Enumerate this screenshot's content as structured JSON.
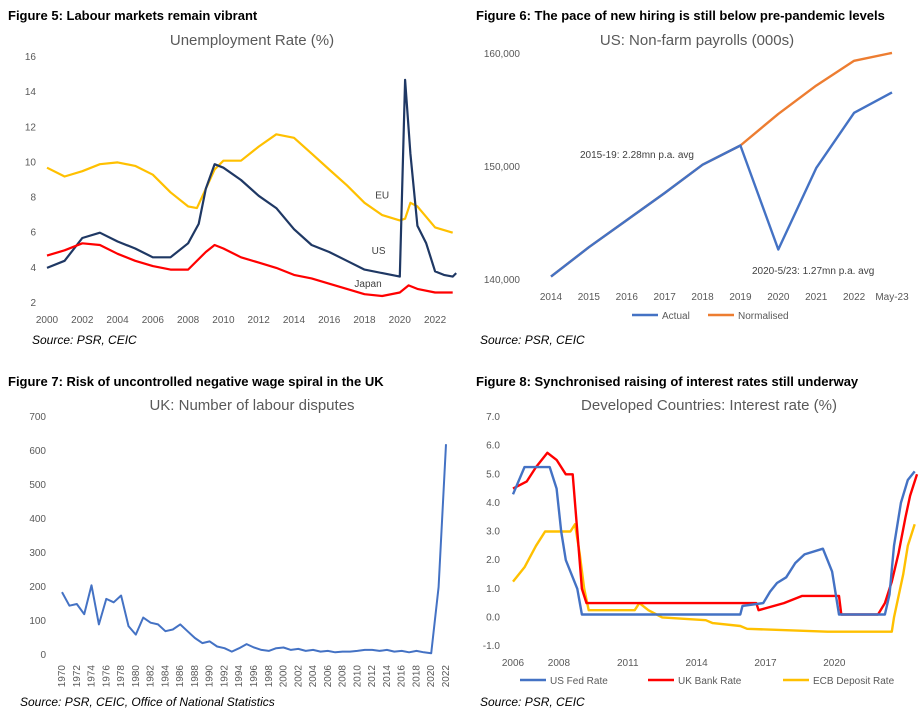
{
  "figures": [
    {
      "figure_title": "Figure 5: Labour markets remain vibrant",
      "source": "Source: PSR,  CEIC"
    },
    {
      "figure_title": "Figure 6: The pace of new hiring is still below pre-pandemic levels",
      "source": "Source: PSR, CEIC"
    },
    {
      "figure_title": "Figure 7: Risk of uncontrolled negative wage spiral in the UK",
      "source": "Source: PSR, CEIC, Office of National Statistics"
    },
    {
      "figure_title": "Figure 8: Synchronised raising of interest rates still underway",
      "source": "Source: PSR, CEIC"
    }
  ],
  "chart_data": [
    {
      "type": "line",
      "title": "Unemployment Rate (%)",
      "xlabel": "",
      "ylabel": "",
      "xlim": [
        2000,
        2023.3
      ],
      "ylim": [
        2,
        16
      ],
      "x_ticks": [
        "2000",
        "2002",
        "2004",
        "2006",
        "2008",
        "2010",
        "2012",
        "2014",
        "2016",
        "2018",
        "2020",
        "2022"
      ],
      "y_ticks": [
        "2",
        "4",
        "6",
        "8",
        "10",
        "12",
        "14",
        "16"
      ],
      "grid": false,
      "legend": "inline labels",
      "series": [
        {
          "name": "EU",
          "color": "#FFC000",
          "points": [
            [
              2000,
              9.7
            ],
            [
              2001,
              9.2
            ],
            [
              2002,
              9.5
            ],
            [
              2003,
              9.9
            ],
            [
              2004,
              10.0
            ],
            [
              2005,
              9.8
            ],
            [
              2006,
              9.3
            ],
            [
              2007,
              8.3
            ],
            [
              2008,
              7.5
            ],
            [
              2008.5,
              7.4
            ],
            [
              2009,
              8.5
            ],
            [
              2009.5,
              9.6
            ],
            [
              2010,
              10.1
            ],
            [
              2011,
              10.1
            ],
            [
              2012,
              10.9
            ],
            [
              2013,
              11.6
            ],
            [
              2014,
              11.4
            ],
            [
              2015,
              10.5
            ],
            [
              2016,
              9.6
            ],
            [
              2017,
              8.7
            ],
            [
              2018,
              7.7
            ],
            [
              2019,
              7.0
            ],
            [
              2020,
              6.7
            ],
            [
              2020.3,
              6.8
            ],
            [
              2020.6,
              7.7
            ],
            [
              2021,
              7.5
            ],
            [
              2022,
              6.3
            ],
            [
              2023,
              6.0
            ]
          ]
        },
        {
          "name": "US",
          "color": "#1F3864",
          "points": [
            [
              2000,
              4.0
            ],
            [
              2001,
              4.4
            ],
            [
              2002,
              5.7
            ],
            [
              2003,
              6.0
            ],
            [
              2004,
              5.5
            ],
            [
              2005,
              5.1
            ],
            [
              2006,
              4.6
            ],
            [
              2007,
              4.6
            ],
            [
              2008,
              5.4
            ],
            [
              2008.6,
              6.5
            ],
            [
              2009,
              8.5
            ],
            [
              2009.5,
              9.9
            ],
            [
              2010,
              9.7
            ],
            [
              2011,
              9.0
            ],
            [
              2012,
              8.1
            ],
            [
              2013,
              7.4
            ],
            [
              2014,
              6.2
            ],
            [
              2015,
              5.3
            ],
            [
              2016,
              4.9
            ],
            [
              2017,
              4.4
            ],
            [
              2018,
              3.9
            ],
            [
              2019,
              3.7
            ],
            [
              2020,
              3.5
            ],
            [
              2020.3,
              14.7
            ],
            [
              2020.6,
              10.5
            ],
            [
              2021,
              6.4
            ],
            [
              2021.5,
              5.4
            ],
            [
              2022,
              3.8
            ],
            [
              2022.5,
              3.6
            ],
            [
              2023,
              3.5
            ],
            [
              2023.2,
              3.7
            ]
          ]
        },
        {
          "name": "Japan",
          "color": "#FF0000",
          "points": [
            [
              2000,
              4.7
            ],
            [
              2001,
              5.0
            ],
            [
              2002,
              5.4
            ],
            [
              2003,
              5.3
            ],
            [
              2004,
              4.8
            ],
            [
              2005,
              4.4
            ],
            [
              2006,
              4.1
            ],
            [
              2007,
              3.9
            ],
            [
              2008,
              3.9
            ],
            [
              2009,
              4.9
            ],
            [
              2009.5,
              5.3
            ],
            [
              2010,
              5.1
            ],
            [
              2011,
              4.6
            ],
            [
              2012,
              4.3
            ],
            [
              2013,
              4.0
            ],
            [
              2014,
              3.6
            ],
            [
              2015,
              3.4
            ],
            [
              2016,
              3.1
            ],
            [
              2017,
              2.8
            ],
            [
              2018,
              2.5
            ],
            [
              2019,
              2.4
            ],
            [
              2020,
              2.6
            ],
            [
              2020.5,
              3.0
            ],
            [
              2021,
              2.8
            ],
            [
              2022,
              2.6
            ],
            [
              2023,
              2.6
            ]
          ]
        }
      ]
    },
    {
      "type": "line",
      "title": "US: Non-farm payrolls (000s)",
      "xlabel": "",
      "ylabel": "",
      "ylim": [
        140000,
        160000
      ],
      "y_ticks": [
        "140,000",
        "150,000",
        "160,000"
      ],
      "categories": [
        "2014",
        "2015",
        "2016",
        "2017",
        "2018",
        "2019",
        "2020",
        "2021",
        "2022",
        "May-23"
      ],
      "grid": false,
      "legend": "bottom",
      "annotations": [
        "2015-19: 2.28mn p.a. avg",
        "2020-5/23: 1.27mn p.a. avg"
      ],
      "series": [
        {
          "name": "Actual",
          "color": "#4472C4",
          "values": [
            140300,
            142900,
            145300,
            147700,
            150200,
            151900,
            142700,
            149900,
            154800,
            156600
          ]
        },
        {
          "name": "Normalised",
          "color": "#ED7D31",
          "values": [
            140300,
            142900,
            145300,
            147700,
            150200,
            151900,
            154700,
            157200,
            159400,
            160100
          ]
        }
      ]
    },
    {
      "type": "line",
      "title": "UK: Number of labour disputes",
      "xlabel": "",
      "ylabel": "",
      "ylim": [
        0,
        700
      ],
      "y_ticks": [
        "0",
        "100",
        "200",
        "300",
        "400",
        "500",
        "600",
        "700"
      ],
      "x_ticks": [
        "1970",
        "1972",
        "1974",
        "1976",
        "1978",
        "1980",
        "1982",
        "1984",
        "1986",
        "1988",
        "1990",
        "1992",
        "1994",
        "1996",
        "1998",
        "2000",
        "2002",
        "2004",
        "2006",
        "2008",
        "2010",
        "2012",
        "2014",
        "2016",
        "2018",
        "2020",
        "2022"
      ],
      "grid": false,
      "legend": "none",
      "series": [
        {
          "name": "",
          "color": "#4472C4",
          "x": [
            1970,
            1971,
            1972,
            1973,
            1974,
            1975,
            1976,
            1977,
            1978,
            1979,
            1980,
            1981,
            1982,
            1983,
            1984,
            1985,
            1986,
            1987,
            1988,
            1989,
            1990,
            1991,
            1992,
            1993,
            1994,
            1995,
            1996,
            1997,
            1998,
            1999,
            2000,
            2001,
            2002,
            2003,
            2004,
            2005,
            2006,
            2007,
            2008,
            2009,
            2010,
            2011,
            2012,
            2013,
            2014,
            2015,
            2016,
            2017,
            2018,
            2019,
            2020,
            2021,
            2022
          ],
          "values": [
            185,
            145,
            150,
            120,
            205,
            90,
            165,
            155,
            175,
            85,
            60,
            110,
            95,
            90,
            70,
            75,
            90,
            70,
            50,
            35,
            40,
            25,
            20,
            10,
            20,
            32,
            22,
            15,
            12,
            20,
            22,
            15,
            18,
            12,
            15,
            10,
            12,
            8,
            10,
            10,
            12,
            15,
            15,
            12,
            15,
            10,
            12,
            8,
            12,
            8,
            5,
            200,
            620
          ]
        }
      ]
    },
    {
      "type": "line",
      "title": "Developed Countries: Interest rate (%)",
      "xlabel": "",
      "ylabel": "",
      "xlim": [
        2006,
        2023.6
      ],
      "ylim": [
        -1.0,
        7.0
      ],
      "y_ticks": [
        "-1.0",
        "0.0",
        "1.0",
        "2.0",
        "3.0",
        "4.0",
        "5.0",
        "6.0",
        "7.0"
      ],
      "x_ticks": [
        "2006",
        "2008",
        "2011",
        "2014",
        "2017",
        "2020"
      ],
      "grid": false,
      "legend": "bottom",
      "series": [
        {
          "name": "US Fed Rate",
          "color": "#4472C4",
          "points": [
            [
              2006,
              4.3
            ],
            [
              2006.5,
              5.25
            ],
            [
              2007.6,
              5.25
            ],
            [
              2007.9,
              4.5
            ],
            [
              2008.1,
              3.0
            ],
            [
              2008.3,
              2.0
            ],
            [
              2008.8,
              1.0
            ],
            [
              2009,
              0.1
            ],
            [
              2015.9,
              0.1
            ],
            [
              2016,
              0.4
            ],
            [
              2016.9,
              0.5
            ],
            [
              2017.2,
              0.9
            ],
            [
              2017.5,
              1.2
            ],
            [
              2017.9,
              1.4
            ],
            [
              2018.3,
              1.9
            ],
            [
              2018.7,
              2.2
            ],
            [
              2019.5,
              2.4
            ],
            [
              2019.7,
              2.0
            ],
            [
              2019.9,
              1.6
            ],
            [
              2020.2,
              0.1
            ],
            [
              2022.2,
              0.1
            ],
            [
              2022.4,
              0.8
            ],
            [
              2022.6,
              2.5
            ],
            [
              2022.9,
              4.0
            ],
            [
              2023.2,
              4.8
            ],
            [
              2023.5,
              5.1
            ]
          ]
        },
        {
          "name": "UK Bank Rate",
          "color": "#FF0000",
          "points": [
            [
              2006,
              4.5
            ],
            [
              2006.6,
              4.75
            ],
            [
              2007,
              5.25
            ],
            [
              2007.5,
              5.75
            ],
            [
              2007.9,
              5.5
            ],
            [
              2008.3,
              5.0
            ],
            [
              2008.6,
              5.0
            ],
            [
              2008.8,
              3.0
            ],
            [
              2009,
              1.0
            ],
            [
              2009.2,
              0.5
            ],
            [
              2016.6,
              0.5
            ],
            [
              2016.7,
              0.25
            ],
            [
              2017.8,
              0.5
            ],
            [
              2018.6,
              0.75
            ],
            [
              2020.2,
              0.75
            ],
            [
              2020.3,
              0.1
            ],
            [
              2021.9,
              0.1
            ],
            [
              2022.2,
              0.5
            ],
            [
              2022.5,
              1.25
            ],
            [
              2022.8,
              2.25
            ],
            [
              2023.1,
              3.5
            ],
            [
              2023.3,
              4.25
            ],
            [
              2023.6,
              5.0
            ]
          ]
        },
        {
          "name": "ECB Deposit Rate",
          "color": "#FFC000",
          "points": [
            [
              2006,
              1.25
            ],
            [
              2006.5,
              1.75
            ],
            [
              2007,
              2.5
            ],
            [
              2007.4,
              3.0
            ],
            [
              2008.5,
              3.0
            ],
            [
              2008.7,
              3.25
            ],
            [
              2008.9,
              2.25
            ],
            [
              2009.1,
              1.0
            ],
            [
              2009.3,
              0.25
            ],
            [
              2011.3,
              0.25
            ],
            [
              2011.5,
              0.5
            ],
            [
              2011.9,
              0.25
            ],
            [
              2012.5,
              0.0
            ],
            [
              2014.4,
              -0.1
            ],
            [
              2014.7,
              -0.2
            ],
            [
              2015.9,
              -0.3
            ],
            [
              2016.2,
              -0.4
            ],
            [
              2019.7,
              -0.5
            ],
            [
              2022.5,
              -0.5
            ],
            [
              2022.6,
              0.0
            ],
            [
              2022.8,
              0.75
            ],
            [
              2023.0,
              1.5
            ],
            [
              2023.2,
              2.5
            ],
            [
              2023.5,
              3.25
            ]
          ]
        }
      ]
    }
  ]
}
